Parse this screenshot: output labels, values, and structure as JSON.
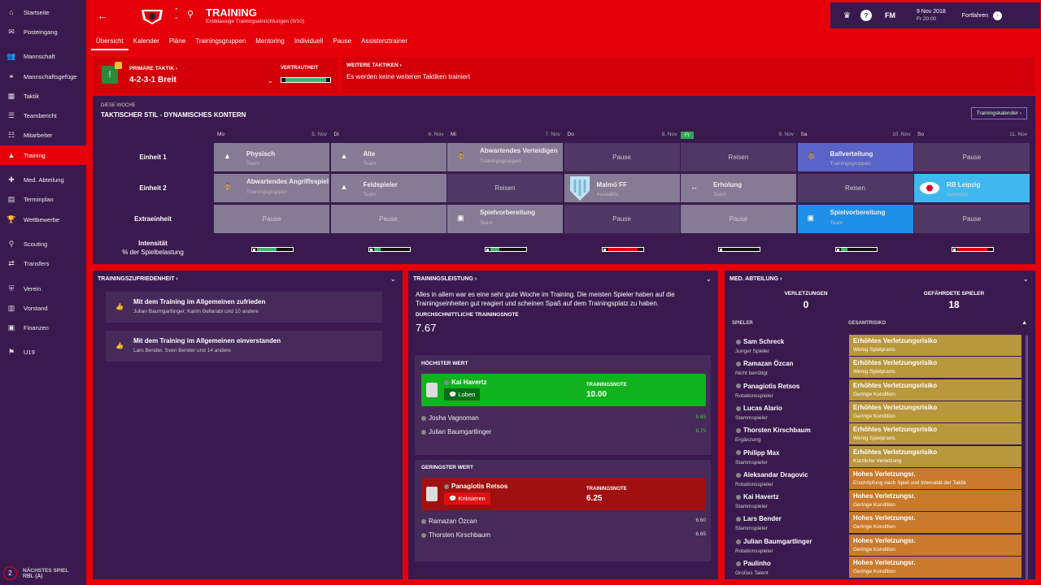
{
  "sidebar": {
    "items": [
      "Startseite",
      "Posteingang",
      "Mannschaft",
      "Mannschaftsgefüge",
      "Taktik",
      "Teambericht",
      "Mitarbeiter",
      "Training",
      "Med. Abteilung",
      "Terminplan",
      "Wettbewerbe",
      "Scouting",
      "Transfers",
      "Verein",
      "Vorstand",
      "Finanzen",
      "U19"
    ],
    "next_label": "NÄCHSTES SPIEL",
    "next_match": "RBL (A)",
    "next_num": "2"
  },
  "header": {
    "title": "TRAINING",
    "subtitle": "Erstklassige Trainingseinrichtungen (9/10)",
    "date": "9 Nov 2018",
    "time": "Fr 20:00",
    "continue": "Fortfahren",
    "fm": "FM",
    "help": "?"
  },
  "tabs": [
    "Übersicht",
    "Kalender",
    "Pläne",
    "Trainingsgruppen",
    "Mentoring",
    "Individuell",
    "Pause",
    "Assistenztrainer"
  ],
  "tactic": {
    "label": "PRIMÄRE TAKTIK ›",
    "name": "4-2-3-1 Breit",
    "familiarity_label": "VERTRAUTHEIT",
    "familiarity": 0.9,
    "more_label": "WEITERE TAKTIKEN ›",
    "more_text": "Es werden keine weiteren Taktiken trainiert"
  },
  "week": {
    "label": "DIESE WOCHE",
    "title": "TAKTISCHER STIL - DYNAMISCHES KONTERN",
    "calendar_btn": "Trainingskalender ›",
    "days": [
      {
        "d": "Mo",
        "n": "5. Nov"
      },
      {
        "d": "Di",
        "n": "6. Nov"
      },
      {
        "d": "Mi",
        "n": "7. Nov"
      },
      {
        "d": "Do",
        "n": "8. Nov"
      },
      {
        "d": "Fr",
        "n": "9. Nov"
      },
      {
        "d": "Sa",
        "n": "10. Nov"
      },
      {
        "d": "So",
        "n": "11. Nov"
      }
    ],
    "rows": [
      "Einheit 1",
      "Einheit 2",
      "Extraeinheit"
    ],
    "intensity_label": "Intensität",
    "intensity_sub": "% der Spielbelastung",
    "e1": [
      {
        "t": "Physisch",
        "s": "Team",
        "k": "gray",
        "i": "▲"
      },
      {
        "t": "Alle",
        "s": "Team",
        "k": "gray",
        "i": "▲"
      },
      {
        "t": "Abwartendes Verteidigen",
        "s": "Trainingsgruppen",
        "k": "gray",
        "i": "⛹"
      },
      {
        "t": "Pause",
        "s": "",
        "k": "plain dark"
      },
      {
        "t": "Reisen",
        "s": "",
        "k": "plain dark"
      },
      {
        "t": "Ballverteilung",
        "s": "Trainingsgruppen",
        "k": "blue",
        "i": "⛹"
      },
      {
        "t": "Pause",
        "s": "",
        "k": "plain dark"
      }
    ],
    "e2": [
      {
        "t": "Abwartendes Angriffsspiel",
        "s": "Trainingsgruppen",
        "k": "gray",
        "i": "⛹"
      },
      {
        "t": "Feldspieler",
        "s": "Team",
        "k": "gray",
        "i": "▲"
      },
      {
        "t": "Reisen",
        "s": "",
        "k": "plain dark"
      },
      {
        "t": "Malmö FF",
        "s": "Auswärts",
        "k": "gray",
        "i": ""
      },
      {
        "t": "Erholung",
        "s": "Team",
        "k": "gray",
        "i": "↔"
      },
      {
        "t": "Reisen",
        "s": "",
        "k": "plain dark"
      },
      {
        "t": "RB Leipzig",
        "s": "Auswärts",
        "k": "lblue",
        "i": ""
      }
    ],
    "ex": [
      {
        "t": "Pause",
        "s": "",
        "k": "plain gray"
      },
      {
        "t": "Pause",
        "s": "",
        "k": "plain gray"
      },
      {
        "t": "Spielvorbereitung",
        "s": "Team",
        "k": "gray",
        "i": "▣"
      },
      {
        "t": "Pause",
        "s": "",
        "k": "plain dark"
      },
      {
        "t": "Pause",
        "s": "",
        "k": "plain gray"
      },
      {
        "t": "Spielvorbereitung",
        "s": "Team",
        "k": "sblue",
        "i": "▣"
      },
      {
        "t": "Pause",
        "s": "",
        "k": "plain dark"
      }
    ],
    "intensity": [
      {
        "v": 0.55,
        "c": "#3cb371"
      },
      {
        "v": 0.2,
        "c": "#3cb371"
      },
      {
        "v": 0.25,
        "c": "#3cb371"
      },
      {
        "v": 0.85,
        "c": "#e5000a"
      },
      {
        "v": 0,
        "c": "#3cb371"
      },
      {
        "v": 0.2,
        "c": "#3cb371"
      },
      {
        "v": 0.85,
        "c": "#e5000a"
      }
    ]
  },
  "zufriedenheit": {
    "title": "TRAININGSZUFRIEDENHEIT ›",
    "items": [
      {
        "a": "Mit dem Training im Allgemeinen zufrieden",
        "b": "Julian Baumgartlinger, Karim Bellarabi und 10 andere"
      },
      {
        "a": "Mit dem Training im Allgemeinen einverstanden",
        "b": "Lars Bender, Sven Bender und 14 andere"
      }
    ]
  },
  "leistung": {
    "title": "TRAININGSLEISTUNG ›",
    "text": "Alles in allem war es eine sehr gute Woche im Training. Die meisten Spieler haben auf die Trainingseinheiten gut reagiert und scheinen Spaß auf dem Trainingsplatz zu haben.",
    "avg_label": "DURCHSCHNITTLICHE TRAININGSNOTE",
    "avg": "7.67",
    "high_label": "HÖCHSTER WERT",
    "best": {
      "name": "Kai Havertz",
      "btn": "Loben",
      "note_label": "TRAININGSNOTE",
      "note": "10.00"
    },
    "high_others": [
      {
        "n": "Josha Vagnoman",
        "v": "9.65"
      },
      {
        "n": "Julian Baumgartlinger",
        "v": "8.75"
      }
    ],
    "low_label": "GERINGSTER WERT",
    "worst": {
      "name": "Panagiotis Retsos",
      "btn": "Kritisieren",
      "note_label": "TRAININGSNOTE",
      "note": "6.25"
    },
    "low_others": [
      {
        "n": "Ramazan Özcan",
        "v": "6.60"
      },
      {
        "n": "Thorsten Kirschbaum",
        "v": "6.65"
      }
    ]
  },
  "med": {
    "title": "MED. ABTEILUNG ›",
    "inj_label": "VERLETZUNGEN",
    "inj": "0",
    "risk_label": "GEFÄHRDETE SPIELER",
    "risk": "18",
    "col1": "SPIELER",
    "col2": "GESAMTRISIKO",
    "rows": [
      {
        "n": "Sam Schreck",
        "r": "Junger Spieler",
        "a": "Erhöhtes Verletzungsrisiko",
        "b": "Wenig Spielpraxis",
        "c": "y"
      },
      {
        "n": "Ramazan Özcan",
        "r": "Nicht benötigt",
        "a": "Erhöhtes Verletzungsrisiko",
        "b": "Wenig Spielpraxis",
        "c": "y"
      },
      {
        "n": "Panagiotis Retsos",
        "r": "Rotationsspieler",
        "a": "Erhöhtes Verletzungsrisiko",
        "b": "Geringe Kondition",
        "c": "y"
      },
      {
        "n": "Lucas Alario",
        "r": "Stammspieler",
        "a": "Erhöhtes Verletzungsrisiko",
        "b": "Geringe Kondition",
        "c": "y"
      },
      {
        "n": "Thorsten Kirschbaum",
        "r": "Ergänzung",
        "a": "Erhöhtes Verletzungsrisiko",
        "b": "Wenig Spielpraxis",
        "c": "y"
      },
      {
        "n": "Philipp Max",
        "r": "Stammspieler",
        "a": "Erhöhtes Verletzungsrisiko",
        "b": "Kürzliche Verletzung",
        "c": "y"
      },
      {
        "n": "Aleksandar Dragovic",
        "r": "Rotationsspieler",
        "a": "Hohes Verletzungsr.",
        "b": "Erschöpfung nach Spiel und Intensität der Taktik",
        "c": "o"
      },
      {
        "n": "Kai Havertz",
        "r": "Stammspieler",
        "a": "Hohes Verletzungsr.",
        "b": "Geringe Kondition",
        "c": "o"
      },
      {
        "n": "Lars Bender",
        "r": "Stammspieler",
        "a": "Hohes Verletzungsr.",
        "b": "Geringe Kondition",
        "c": "o"
      },
      {
        "n": "Julian Baumgartlinger",
        "r": "Rotationsspieler",
        "a": "Hohes Verletzungsr.",
        "b": "Geringe Kondition",
        "c": "o"
      },
      {
        "n": "Paulinho",
        "r": "Großes Talent",
        "a": "Hohes Verletzungsr.",
        "b": "Geringe Kondition",
        "c": "o"
      }
    ]
  },
  "colors": {
    "accent": "#e5000a",
    "panel": "#3a1a4e"
  }
}
